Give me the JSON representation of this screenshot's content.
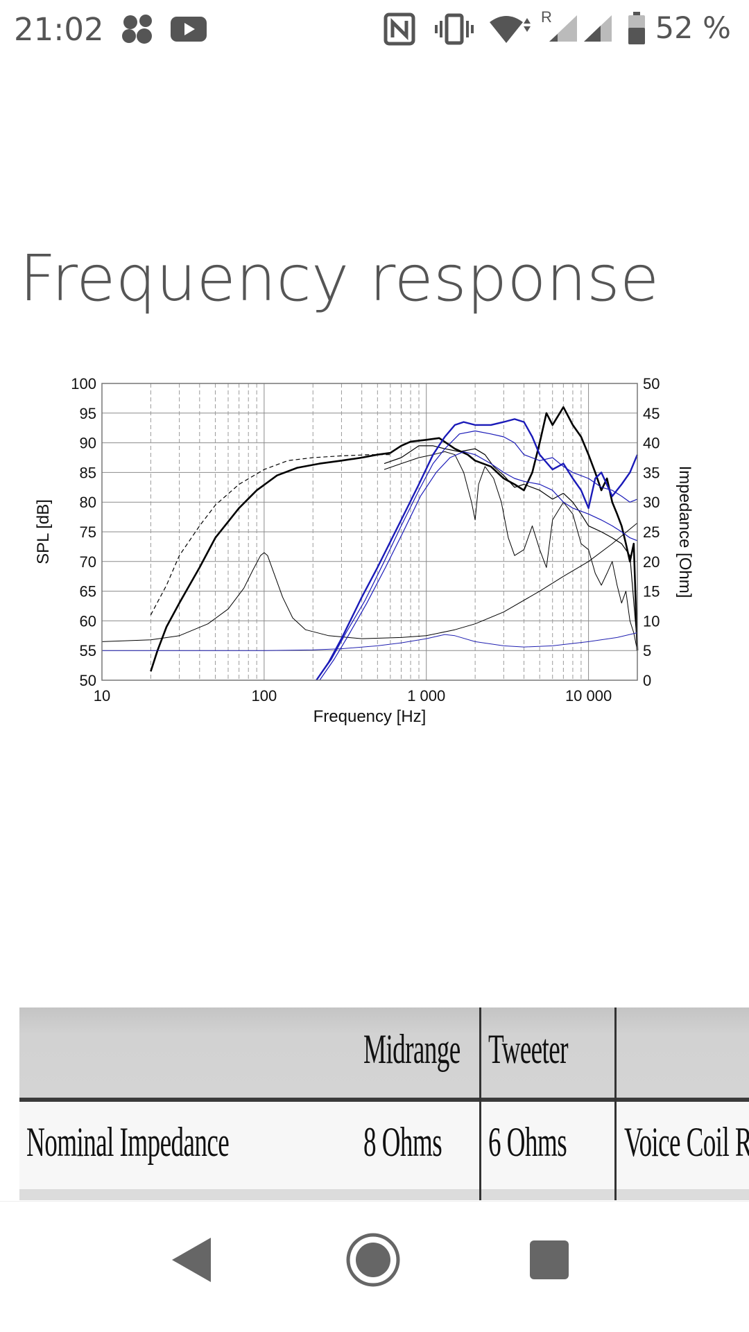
{
  "status_bar": {
    "time": "21:02",
    "roaming_indicator": "R",
    "battery_percent": "52 %",
    "icons": [
      "dots-app-icon",
      "youtube-icon",
      "nfc-icon",
      "vibrate-icon",
      "wifi-icon",
      "signal-icon",
      "signal-icon-2",
      "battery-icon"
    ]
  },
  "page": {
    "title": "Frequency response"
  },
  "chart_data": {
    "type": "line",
    "xlabel": "Frequency [Hz]",
    "ylabel": "SPL [dB]",
    "y2label": "Impedance [Ohm]",
    "xscale": "log",
    "xlim": [
      10,
      20000
    ],
    "ylim": [
      50,
      100
    ],
    "y2lim": [
      0,
      50
    ],
    "grid": true,
    "x_tick_labels": [
      {
        "value": 10,
        "label": "10"
      },
      {
        "value": 100,
        "label": "100"
      },
      {
        "value": 1000,
        "label": "1 000"
      },
      {
        "value": 10000,
        "label": "10 000"
      }
    ],
    "y_ticks": [
      50,
      55,
      60,
      65,
      70,
      75,
      80,
      85,
      90,
      95,
      100
    ],
    "y2_ticks": [
      0,
      5,
      10,
      15,
      20,
      25,
      30,
      35,
      40,
      45,
      50
    ],
    "series": [
      {
        "color": "#000000",
        "width": 1.2,
        "dash": "6 4",
        "points": [
          [
            20,
            61
          ],
          [
            25,
            66
          ],
          [
            30,
            71
          ],
          [
            40,
            76
          ],
          [
            50,
            79.5
          ],
          [
            70,
            83
          ],
          [
            100,
            85.5
          ],
          [
            140,
            87
          ],
          [
            200,
            87.5
          ],
          [
            300,
            87.8
          ],
          [
            450,
            88
          ],
          [
            600,
            88
          ]
        ]
      },
      {
        "color": "#000000",
        "width": 2.6,
        "points": [
          [
            20,
            51.5
          ],
          [
            22,
            55
          ],
          [
            25,
            59
          ],
          [
            30,
            63
          ],
          [
            40,
            69
          ],
          [
            50,
            74
          ],
          [
            70,
            79
          ],
          [
            90,
            82
          ],
          [
            120,
            84.5
          ],
          [
            160,
            85.8
          ],
          [
            220,
            86.5
          ],
          [
            300,
            87
          ],
          [
            400,
            87.5
          ],
          [
            500,
            88
          ],
          [
            600,
            88.3
          ],
          [
            700,
            89.5
          ],
          [
            800,
            90.2
          ],
          [
            1000,
            90.5
          ],
          [
            1200,
            90.8
          ],
          [
            1500,
            89
          ],
          [
            1800,
            88
          ],
          [
            2000,
            87
          ],
          [
            2500,
            86
          ],
          [
            3000,
            84
          ],
          [
            3500,
            83
          ],
          [
            4000,
            82
          ],
          [
            4500,
            85
          ],
          [
            5000,
            90
          ],
          [
            5500,
            95
          ],
          [
            6000,
            93
          ],
          [
            7000,
            96
          ],
          [
            8000,
            93
          ],
          [
            9000,
            91
          ],
          [
            10000,
            88
          ],
          [
            11000,
            85
          ],
          [
            12000,
            82
          ],
          [
            13000,
            84
          ],
          [
            14000,
            80
          ],
          [
            15000,
            78
          ],
          [
            16000,
            76
          ],
          [
            17000,
            73
          ],
          [
            18000,
            70
          ],
          [
            19000,
            73
          ],
          [
            20000,
            55
          ]
        ]
      },
      {
        "color": "#000000",
        "width": 1.2,
        "points": [
          [
            550,
            86.5
          ],
          [
            700,
            87.5
          ],
          [
            900,
            89.5
          ],
          [
            1100,
            89.5
          ],
          [
            1300,
            89
          ],
          [
            1600,
            88.5
          ],
          [
            2000,
            89
          ],
          [
            2300,
            88
          ],
          [
            2600,
            86
          ],
          [
            3000,
            84.5
          ],
          [
            3500,
            82.5
          ],
          [
            4000,
            83
          ],
          [
            5000,
            82
          ],
          [
            6000,
            80.5
          ],
          [
            7000,
            81.5
          ],
          [
            8000,
            80
          ],
          [
            9000,
            78
          ],
          [
            10000,
            76
          ],
          [
            12000,
            75
          ],
          [
            14000,
            74
          ],
          [
            16000,
            73
          ],
          [
            18000,
            71
          ],
          [
            20000,
            56
          ]
        ]
      },
      {
        "color": "#000000",
        "width": 1.0,
        "points": [
          [
            550,
            85.5
          ],
          [
            700,
            86.5
          ],
          [
            900,
            87.5
          ],
          [
            1100,
            88
          ],
          [
            1300,
            88.5
          ],
          [
            1500,
            88
          ],
          [
            1700,
            85
          ],
          [
            1900,
            80
          ],
          [
            2000,
            77
          ],
          [
            2100,
            83
          ],
          [
            2300,
            86
          ],
          [
            2600,
            84
          ],
          [
            2900,
            80
          ],
          [
            3200,
            74
          ],
          [
            3500,
            71
          ],
          [
            4000,
            72
          ],
          [
            4500,
            76
          ],
          [
            5000,
            72
          ],
          [
            5500,
            69
          ],
          [
            6000,
            77
          ],
          [
            7000,
            80
          ],
          [
            8000,
            78
          ],
          [
            9000,
            73
          ],
          [
            10000,
            72
          ],
          [
            11000,
            68
          ],
          [
            12000,
            66
          ],
          [
            13000,
            68
          ],
          [
            14000,
            70
          ],
          [
            15000,
            66
          ],
          [
            16000,
            63
          ],
          [
            17000,
            65
          ],
          [
            18000,
            60
          ],
          [
            19000,
            58
          ],
          [
            20000,
            55
          ]
        ]
      },
      {
        "color": "#000000",
        "width": 1.0,
        "points": [
          [
            10,
            56.5
          ],
          [
            20,
            56.8
          ],
          [
            30,
            57.5
          ],
          [
            45,
            59.5
          ],
          [
            60,
            62
          ],
          [
            75,
            65.5
          ],
          [
            85,
            68.5
          ],
          [
            95,
            71
          ],
          [
            100,
            71.5
          ],
          [
            105,
            71
          ],
          [
            115,
            68
          ],
          [
            130,
            64
          ],
          [
            150,
            60.5
          ],
          [
            180,
            58.5
          ],
          [
            250,
            57.5
          ],
          [
            400,
            57
          ],
          [
            700,
            57.2
          ],
          [
            1000,
            57.5
          ],
          [
            1500,
            58.5
          ],
          [
            2000,
            59.5
          ],
          [
            3000,
            61.5
          ],
          [
            5000,
            65
          ],
          [
            7000,
            67.5
          ],
          [
            10000,
            70
          ],
          [
            14000,
            73
          ],
          [
            20000,
            76.5
          ]
        ]
      },
      {
        "color": "#1f1fb0",
        "width": 1.0,
        "points": [
          [
            10,
            55
          ],
          [
            50,
            55
          ],
          [
            100,
            55
          ],
          [
            200,
            55.1
          ],
          [
            300,
            55.3
          ],
          [
            500,
            55.8
          ],
          [
            700,
            56.3
          ],
          [
            1000,
            57
          ],
          [
            1300,
            57.7
          ],
          [
            1500,
            57.5
          ],
          [
            2000,
            56.5
          ],
          [
            3000,
            55.8
          ],
          [
            4000,
            55.6
          ],
          [
            6000,
            55.8
          ],
          [
            10000,
            56.5
          ],
          [
            15000,
            57.2
          ],
          [
            20000,
            58
          ]
        ]
      },
      {
        "color": "#1a1ab8",
        "width": 2.4,
        "points": [
          [
            210,
            50
          ],
          [
            250,
            53
          ],
          [
            300,
            57
          ],
          [
            400,
            64
          ],
          [
            500,
            69
          ],
          [
            700,
            77
          ],
          [
            900,
            83
          ],
          [
            1100,
            88
          ],
          [
            1300,
            91
          ],
          [
            1500,
            93
          ],
          [
            1700,
            93.5
          ],
          [
            2000,
            93
          ],
          [
            2500,
            93
          ],
          [
            3000,
            93.5
          ],
          [
            3500,
            94
          ],
          [
            4000,
            93.5
          ],
          [
            4500,
            91
          ],
          [
            5000,
            88
          ],
          [
            6000,
            85.5
          ],
          [
            7000,
            86.5
          ],
          [
            8000,
            84
          ],
          [
            9000,
            82
          ],
          [
            10000,
            79
          ],
          [
            11000,
            84
          ],
          [
            12000,
            85
          ],
          [
            14000,
            81
          ],
          [
            16000,
            83
          ],
          [
            18000,
            85
          ],
          [
            20000,
            88
          ]
        ]
      },
      {
        "color": "#1a1ab8",
        "width": 1.2,
        "points": [
          [
            210,
            50
          ],
          [
            260,
            53.5
          ],
          [
            320,
            58
          ],
          [
            420,
            63.5
          ],
          [
            550,
            70
          ],
          [
            700,
            76
          ],
          [
            900,
            82
          ],
          [
            1100,
            86.5
          ],
          [
            1300,
            89
          ],
          [
            1600,
            91.5
          ],
          [
            2000,
            92
          ],
          [
            2500,
            91.5
          ],
          [
            3000,
            91
          ],
          [
            3500,
            90
          ],
          [
            4000,
            88
          ],
          [
            5000,
            87
          ],
          [
            6000,
            87.5
          ],
          [
            7000,
            86
          ],
          [
            8000,
            85
          ],
          [
            10000,
            84
          ],
          [
            12000,
            82.5
          ],
          [
            14000,
            82
          ],
          [
            16000,
            81
          ],
          [
            18000,
            80
          ],
          [
            20000,
            80.5
          ]
        ]
      },
      {
        "color": "#1a1ab8",
        "width": 1.2,
        "points": [
          [
            220,
            50
          ],
          [
            270,
            53.5
          ],
          [
            330,
            57.5
          ],
          [
            430,
            63
          ],
          [
            560,
            69
          ],
          [
            720,
            75
          ],
          [
            920,
            81
          ],
          [
            1150,
            85
          ],
          [
            1400,
            87.5
          ],
          [
            1700,
            88.5
          ],
          [
            2000,
            88
          ],
          [
            2500,
            86.5
          ],
          [
            3000,
            85
          ],
          [
            3500,
            84
          ],
          [
            4000,
            83.5
          ],
          [
            5000,
            83
          ],
          [
            6000,
            82
          ],
          [
            7000,
            80
          ],
          [
            8000,
            79
          ],
          [
            10000,
            78
          ],
          [
            12000,
            77
          ],
          [
            14000,
            76
          ],
          [
            16000,
            75
          ],
          [
            18000,
            74
          ],
          [
            20000,
            73.5
          ]
        ]
      }
    ]
  },
  "spec_table": {
    "columns": [
      "",
      "Midrange",
      "Tweeter",
      ""
    ],
    "rows": [
      {
        "label": "Nominal Impedance",
        "midrange": "8 Ohms",
        "tweeter": "6 Ohms",
        "extra": "Voice Coil Re"
      }
    ]
  },
  "nav_bar": {
    "buttons": [
      "back",
      "home",
      "recents"
    ]
  }
}
